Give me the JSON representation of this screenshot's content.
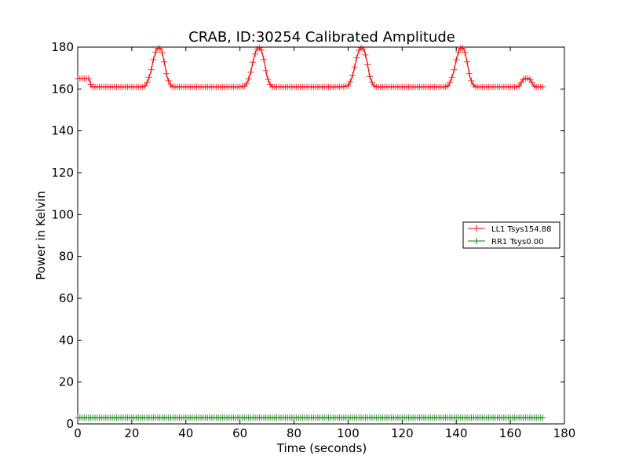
{
  "chart_data": {
    "type": "line",
    "title": "CRAB, ID:30254 Calibrated Amplitude",
    "xlabel": "Time (seconds)",
    "ylabel": "Power in Kelvin",
    "xlim": [
      0,
      180
    ],
    "ylim": [
      0,
      180
    ],
    "xticks": [
      0,
      20,
      40,
      60,
      80,
      100,
      120,
      140,
      160,
      180
    ],
    "yticks": [
      0,
      20,
      40,
      60,
      80,
      100,
      120,
      140,
      160,
      180
    ],
    "grid": false,
    "legend_position": "right",
    "series": [
      {
        "name": "LL1 Tsys154.88",
        "color": "#ff0000",
        "marker": "+",
        "points": [
          [
            0,
            165
          ],
          [
            1,
            165
          ],
          [
            2,
            165
          ],
          [
            3,
            165
          ],
          [
            4,
            165
          ],
          [
            4.5,
            164
          ],
          [
            5,
            161
          ],
          [
            6,
            161
          ],
          [
            7,
            161
          ],
          [
            8,
            161
          ],
          [
            9,
            161
          ],
          [
            10,
            161
          ],
          [
            15,
            161
          ],
          [
            20,
            161
          ],
          [
            24,
            161
          ],
          [
            25,
            161.5
          ],
          [
            26,
            164
          ],
          [
            27,
            168
          ],
          [
            28,
            174
          ],
          [
            29,
            178.5
          ],
          [
            30,
            180
          ],
          [
            31,
            178.5
          ],
          [
            32,
            173
          ],
          [
            33,
            166
          ],
          [
            34,
            162.5
          ],
          [
            35,
            161
          ],
          [
            40,
            161
          ],
          [
            50,
            161
          ],
          [
            60,
            161
          ],
          [
            62,
            161.5
          ],
          [
            63,
            164
          ],
          [
            64,
            168
          ],
          [
            65,
            174
          ],
          [
            66,
            178.5
          ],
          [
            67,
            180
          ],
          [
            68,
            178.5
          ],
          [
            69,
            173
          ],
          [
            70,
            166
          ],
          [
            71,
            162.5
          ],
          [
            72,
            161
          ],
          [
            80,
            161
          ],
          [
            90,
            161
          ],
          [
            98,
            161
          ],
          [
            100,
            161.5
          ],
          [
            101,
            164
          ],
          [
            102,
            168
          ],
          [
            103,
            174
          ],
          [
            104,
            178.5
          ],
          [
            105,
            180
          ],
          [
            106,
            178.5
          ],
          [
            107,
            173
          ],
          [
            108,
            166
          ],
          [
            109,
            162.5
          ],
          [
            110,
            161
          ],
          [
            120,
            161
          ],
          [
            130,
            161
          ],
          [
            136,
            161
          ],
          [
            137,
            161.5
          ],
          [
            138,
            164
          ],
          [
            139,
            168
          ],
          [
            140,
            174
          ],
          [
            141,
            178.5
          ],
          [
            142,
            180
          ],
          [
            143,
            178.5
          ],
          [
            144,
            173
          ],
          [
            145,
            166
          ],
          [
            146,
            162.5
          ],
          [
            147,
            161
          ],
          [
            155,
            161
          ],
          [
            162,
            161
          ],
          [
            163,
            161
          ],
          [
            164,
            163
          ],
          [
            165,
            165
          ],
          [
            166,
            165
          ],
          [
            167,
            165
          ],
          [
            168,
            163
          ],
          [
            169,
            161
          ],
          [
            170,
            161
          ],
          [
            171,
            161
          ],
          [
            172,
            161
          ]
        ]
      },
      {
        "name": "RR1 Tsys0.00",
        "color": "#008000",
        "marker": "+",
        "points": [
          [
            0,
            3
          ],
          [
            4,
            3
          ],
          [
            5,
            3
          ],
          [
            6,
            3
          ],
          [
            7,
            3
          ],
          [
            8,
            3
          ],
          [
            9,
            3
          ],
          [
            20,
            3
          ],
          [
            40,
            3
          ],
          [
            60,
            3
          ],
          [
            80,
            3
          ],
          [
            100,
            3
          ],
          [
            120,
            3
          ],
          [
            140,
            3
          ],
          [
            160,
            3
          ],
          [
            163,
            3
          ],
          [
            164,
            3
          ],
          [
            165,
            3
          ],
          [
            166,
            3
          ],
          [
            167,
            3
          ],
          [
            168,
            3
          ],
          [
            169,
            3
          ],
          [
            170,
            3
          ],
          [
            171,
            3
          ],
          [
            172,
            3
          ]
        ]
      }
    ]
  }
}
